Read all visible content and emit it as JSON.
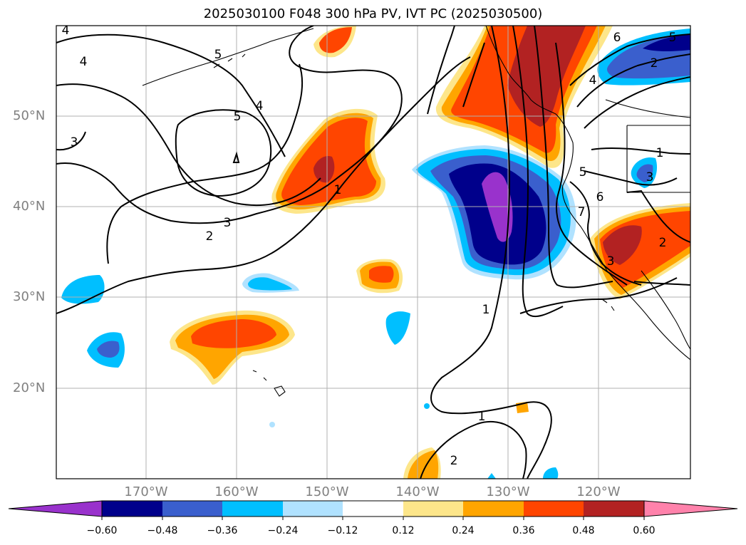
{
  "title": "2025030100 F048 300 hPa PV, IVT PC (2025030500)",
  "map": {
    "lat_labels": [
      "50°N",
      "40°N",
      "30°N",
      "20°N"
    ],
    "lon_labels": [
      "170°W",
      "160°W",
      "150°W",
      "140°W",
      "130°W",
      "120°W"
    ],
    "contour_labels": [
      "4",
      "5",
      "5",
      "4",
      "3",
      "2",
      "3",
      "1",
      "6",
      "5",
      "4",
      "2",
      "1",
      "3",
      "5",
      "6",
      "7",
      "2",
      "1",
      "1",
      "2",
      "4",
      "3"
    ]
  },
  "colorbar": {
    "colors": [
      "#9932cc",
      "#00008b",
      "#3a5fcd",
      "#00bfff",
      "#b0e2ff",
      "#ffffff",
      "#fde68a",
      "#ffa500",
      "#ff4500",
      "#b22222",
      "#ff82ab"
    ],
    "tick_labels": [
      "−0.60",
      "−0.48",
      "−0.36",
      "−0.24",
      "−0.12",
      "0.12",
      "0.24",
      "0.36",
      "0.48",
      "0.60"
    ]
  },
  "colors": {
    "neg_strong": "#00008b",
    "neg_mid": "#3a5fcd",
    "neg_light": "#00bfff",
    "neg_faint": "#b0e2ff",
    "pos_faint": "#fde68a",
    "pos_light": "#ffa500",
    "pos_mid": "#ff4500",
    "pos_strong": "#b22222",
    "purple": "#9932cc"
  }
}
